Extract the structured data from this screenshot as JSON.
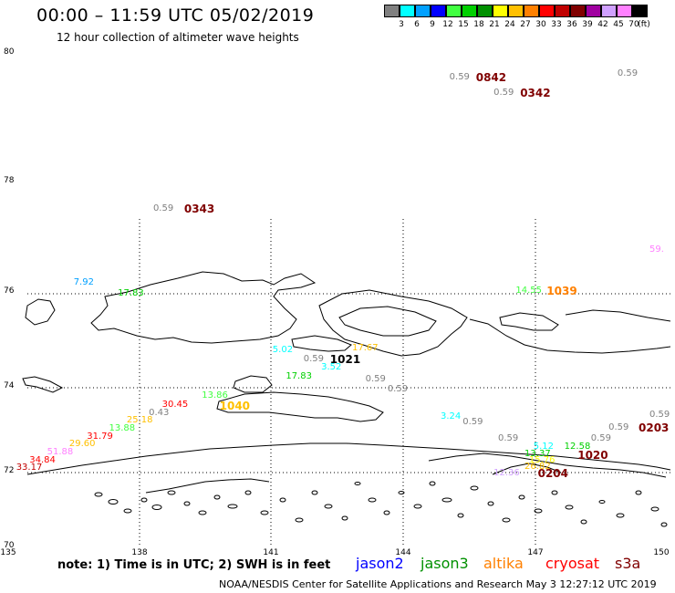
{
  "header": {
    "title": "00:00 – 11:59 UTC 05/02/2019",
    "subtitle": "12 hour collection of altimeter wave heights"
  },
  "color_scale": {
    "unit": "(ft)",
    "items": [
      {
        "label": "3",
        "color": "#808080"
      },
      {
        "label": "6",
        "color": "#00ffff"
      },
      {
        "label": "9",
        "color": "#00a0ff"
      },
      {
        "label": "12",
        "color": "#0000ff"
      },
      {
        "label": "15",
        "color": "#40ff40"
      },
      {
        "label": "18",
        "color": "#00d000"
      },
      {
        "label": "21",
        "color": "#009000"
      },
      {
        "label": "24",
        "color": "#ffff00"
      },
      {
        "label": "27",
        "color": "#ffc000"
      },
      {
        "label": "30",
        "color": "#ff8000"
      },
      {
        "label": "33",
        "color": "#ff0000"
      },
      {
        "label": "36",
        "color": "#c00000"
      },
      {
        "label": "39",
        "color": "#800000"
      },
      {
        "label": "42",
        "color": "#a000a0"
      },
      {
        "label": "45",
        "color": "#d0a0ff"
      },
      {
        "label": "70",
        "color": "#ff80ff"
      },
      {
        "label": "",
        "color": "#000000"
      }
    ]
  },
  "axes": {
    "lat_labels": [
      "80",
      "78",
      "76",
      "74",
      "72",
      "70"
    ],
    "lon_labels": [
      "135",
      "138",
      "141",
      "144",
      "147",
      "150"
    ]
  },
  "observations": [
    {
      "text": "0.59",
      "lon": 145.0,
      "lat": 79.6,
      "color": "#808080"
    },
    {
      "text": "0.59",
      "lon": 146.0,
      "lat": 79.36,
      "color": "#808080"
    },
    {
      "text": "0.59",
      "lon": 148.8,
      "lat": 79.66,
      "color": "#808080"
    },
    {
      "text": "0.59",
      "lon": 138.3,
      "lat": 77.5,
      "color": "#808080"
    },
    {
      "text": "59.",
      "lon": 149.8,
      "lat": 76.77,
      "color": "#ff80ff"
    },
    {
      "text": "7.92",
      "lon": 136.5,
      "lat": 76.18,
      "color": "#00a0ff"
    },
    {
      "text": "17.83",
      "lon": 137.5,
      "lat": 75.98,
      "color": "#00d000"
    },
    {
      "text": "14.55",
      "lon": 146.5,
      "lat": 76.03,
      "color": "#40ff40"
    },
    {
      "text": "5.02",
      "lon": 141.0,
      "lat": 74.78,
      "color": "#00ffff"
    },
    {
      "text": "0.59",
      "lon": 141.7,
      "lat": 74.6,
      "color": "#808080"
    },
    {
      "text": "17.67",
      "lon": 142.8,
      "lat": 74.82,
      "color": "#ffc000"
    },
    {
      "text": "3.52",
      "lon": 142.1,
      "lat": 74.42,
      "color": "#00ffff"
    },
    {
      "text": "17.83",
      "lon": 141.3,
      "lat": 74.23,
      "color": "#00d000"
    },
    {
      "text": "0.59",
      "lon": 143.1,
      "lat": 74.18,
      "color": "#808080"
    },
    {
      "text": "0.59",
      "lon": 143.6,
      "lat": 73.96,
      "color": "#808080"
    },
    {
      "text": "13.86",
      "lon": 139.4,
      "lat": 73.8,
      "color": "#40ff40"
    },
    {
      "text": "30.45",
      "lon": 138.5,
      "lat": 73.6,
      "color": "#ff0000"
    },
    {
      "text": "0.43",
      "lon": 138.2,
      "lat": 73.4,
      "color": "#808080"
    },
    {
      "text": "25.18",
      "lon": 137.7,
      "lat": 73.22,
      "color": "#ffc000"
    },
    {
      "text": "13.88",
      "lon": 137.3,
      "lat": 73.03,
      "color": "#40ff40"
    },
    {
      "text": "31.79",
      "lon": 136.8,
      "lat": 72.84,
      "color": "#ff0000"
    },
    {
      "text": "29.60",
      "lon": 136.4,
      "lat": 72.66,
      "color": "#ffc000"
    },
    {
      "text": "51.88",
      "lon": 135.9,
      "lat": 72.48,
      "color": "#ff80ff"
    },
    {
      "text": "34.84",
      "lon": 135.5,
      "lat": 72.29,
      "color": "#ff0000"
    },
    {
      "text": "33.17",
      "lon": 135.2,
      "lat": 72.1,
      "color": "#c00000"
    },
    {
      "text": "3.24",
      "lon": 144.8,
      "lat": 73.31,
      "color": "#00ffff"
    },
    {
      "text": "0.59",
      "lon": 145.3,
      "lat": 73.18,
      "color": "#808080"
    },
    {
      "text": "0.59",
      "lon": 149.6,
      "lat": 73.35,
      "color": "#808080"
    },
    {
      "text": "0.59",
      "lon": 148.6,
      "lat": 73.06,
      "color": "#808080"
    },
    {
      "text": "0.59",
      "lon": 146.1,
      "lat": 72.8,
      "color": "#808080"
    },
    {
      "text": "0.59",
      "lon": 148.2,
      "lat": 72.8,
      "color": "#808080"
    },
    {
      "text": "5.12",
      "lon": 146.9,
      "lat": 72.6,
      "color": "#00ffff"
    },
    {
      "text": "12.58",
      "lon": 147.6,
      "lat": 72.6,
      "color": "#00d000"
    },
    {
      "text": "13.37",
      "lon": 146.7,
      "lat": 72.42,
      "color": "#00d000"
    },
    {
      "text": "15.76",
      "lon": 146.8,
      "lat": 72.28,
      "color": "#ffff00"
    },
    {
      "text": "26.82",
      "lon": 146.7,
      "lat": 72.12,
      "color": "#ffc000"
    },
    {
      "text": "12.36",
      "lon": 146.0,
      "lat": 71.97,
      "color": "#d0a0ff"
    }
  ],
  "hour_labels": [
    {
      "text": "0842",
      "lon": 145.6,
      "lat": 79.6,
      "color": "#800000"
    },
    {
      "text": "0342",
      "lon": 146.6,
      "lat": 79.36,
      "color": "#800000"
    },
    {
      "text": "0343",
      "lon": 139.0,
      "lat": 77.5,
      "color": "#800000"
    },
    {
      "text": "1039",
      "lon": 147.2,
      "lat": 76.03,
      "color": "#ff8000"
    },
    {
      "text": "1021",
      "lon": 142.3,
      "lat": 74.59,
      "color": "#000000"
    },
    {
      "text": "1040",
      "lon": 139.8,
      "lat": 73.56,
      "color": "#ffc000"
    },
    {
      "text": "0203",
      "lon": 149.5,
      "lat": 73.06,
      "color": "#800000"
    },
    {
      "text": "1020",
      "lon": 147.9,
      "lat": 72.4,
      "color": "#800000"
    },
    {
      "text": "0204",
      "lon": 147.0,
      "lat": 71.97,
      "color": "#800000"
    }
  ],
  "footer": {
    "note": "note:  1) Time is in UTC;  2) SWH is in feet",
    "satellites": [
      {
        "name": "jason2",
        "color": "#0000ff"
      },
      {
        "name": "jason3",
        "color": "#009000"
      },
      {
        "name": "altika",
        "color": "#ff8000"
      },
      {
        "name": "cryosat",
        "color": "#ff0000"
      },
      {
        "name": "s3a",
        "color": "#800000"
      }
    ],
    "credit": "NOAA/NESDIS Center for Satellite Applications and Research     May  3 12:27:12 UTC 2019"
  }
}
